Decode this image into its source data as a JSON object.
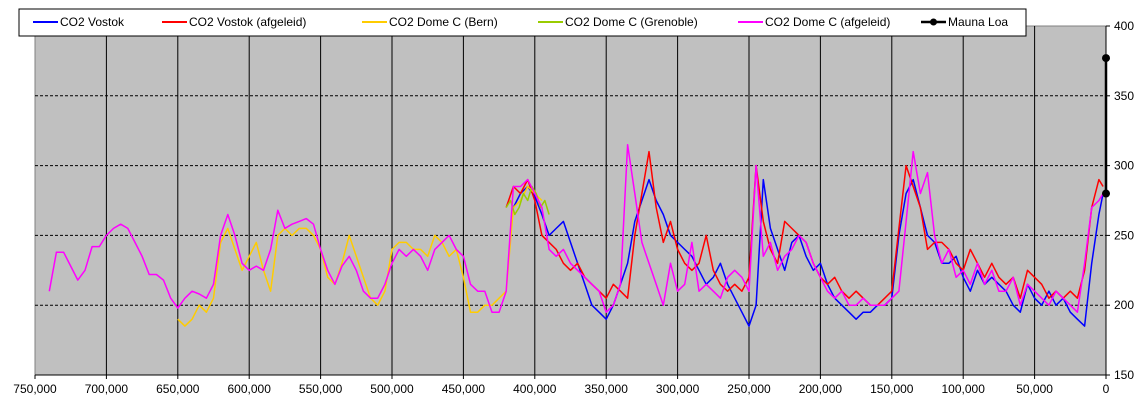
{
  "chart_data": {
    "type": "line",
    "title": "",
    "xlabel": "",
    "ylabel": "",
    "x_reversed": true,
    "xlim": [
      750000,
      0
    ],
    "ylim": [
      150,
      400
    ],
    "x_ticks": [
      750000,
      700000,
      650000,
      600000,
      550000,
      500000,
      450000,
      400000,
      350000,
      300000,
      250000,
      200000,
      150000,
      100000,
      50000,
      0
    ],
    "x_tick_labels": [
      "750,000",
      "700,000",
      "650,000",
      "600,000",
      "550,000",
      "500,000",
      "450,000",
      "400,000",
      "350,000",
      "300,000",
      "250,000",
      "200,000",
      "150,000",
      "100,000",
      "50,000",
      "0"
    ],
    "y_ticks": [
      150,
      200,
      250,
      300,
      350,
      400
    ],
    "y_tick_labels": [
      "150",
      "200",
      "250",
      "300",
      "350",
      "400"
    ],
    "y_axis_side": "right",
    "grid": "horizontal dashed",
    "plot_background": "#c0c0c0",
    "legend_position": "top",
    "series": [
      {
        "name": "CO2 Vostok",
        "color": "#0000ff",
        "x": [
          415000,
          410000,
          405000,
          400000,
          395000,
          390000,
          385000,
          380000,
          375000,
          370000,
          365000,
          360000,
          355000,
          350000,
          345000,
          340000,
          335000,
          330000,
          325000,
          320000,
          315000,
          310000,
          305000,
          300000,
          295000,
          290000,
          285000,
          280000,
          275000,
          270000,
          265000,
          260000,
          255000,
          250000,
          245000,
          240000,
          235000,
          230000,
          225000,
          220000,
          215000,
          210000,
          205000,
          200000,
          195000,
          190000,
          185000,
          180000,
          175000,
          170000,
          165000,
          160000,
          155000,
          150000,
          145000,
          140000,
          135000,
          130000,
          125000,
          120000,
          115000,
          110000,
          105000,
          100000,
          95000,
          90000,
          85000,
          80000,
          75000,
          70000,
          65000,
          60000,
          55000,
          50000,
          45000,
          40000,
          35000,
          30000,
          25000,
          20000,
          15000,
          10000,
          5000,
          2000
        ],
        "y": [
          270,
          280,
          285,
          278,
          265,
          250,
          255,
          260,
          245,
          230,
          215,
          200,
          195,
          190,
          200,
          215,
          230,
          260,
          275,
          290,
          275,
          265,
          250,
          245,
          240,
          235,
          225,
          215,
          220,
          230,
          215,
          205,
          195,
          185,
          200,
          290,
          255,
          240,
          225,
          245,
          250,
          235,
          225,
          230,
          215,
          205,
          200,
          195,
          190,
          195,
          195,
          200,
          200,
          205,
          250,
          280,
          290,
          270,
          250,
          245,
          230,
          230,
          235,
          220,
          210,
          225,
          215,
          220,
          215,
          210,
          200,
          195,
          215,
          205,
          200,
          210,
          200,
          205,
          195,
          190,
          185,
          230,
          265,
          280
        ]
      },
      {
        "name": "CO2 Vostok (afgeleid)",
        "color": "#ff0000",
        "x": [
          420000,
          415000,
          410000,
          405000,
          400000,
          395000,
          390000,
          385000,
          380000,
          375000,
          370000,
          365000,
          360000,
          355000,
          350000,
          345000,
          340000,
          335000,
          330000,
          325000,
          320000,
          315000,
          310000,
          305000,
          300000,
          295000,
          290000,
          285000,
          280000,
          275000,
          270000,
          265000,
          260000,
          255000,
          250000,
          245000,
          240000,
          235000,
          230000,
          225000,
          220000,
          215000,
          210000,
          205000,
          200000,
          195000,
          190000,
          185000,
          180000,
          175000,
          170000,
          165000,
          160000,
          155000,
          150000,
          145000,
          140000,
          135000,
          130000,
          125000,
          120000,
          115000,
          110000,
          105000,
          100000,
          95000,
          90000,
          85000,
          80000,
          75000,
          70000,
          65000,
          60000,
          55000,
          50000,
          45000,
          40000,
          35000,
          30000,
          25000,
          20000,
          15000,
          10000,
          5000,
          2000
        ],
        "y": [
          270,
          285,
          280,
          290,
          275,
          250,
          245,
          240,
          230,
          225,
          230,
          220,
          215,
          210,
          205,
          215,
          210,
          205,
          250,
          280,
          310,
          270,
          245,
          260,
          240,
          230,
          225,
          230,
          250,
          225,
          215,
          210,
          215,
          210,
          220,
          300,
          260,
          240,
          230,
          260,
          255,
          250,
          245,
          230,
          220,
          215,
          220,
          210,
          205,
          210,
          205,
          200,
          200,
          205,
          210,
          255,
          300,
          285,
          270,
          240,
          245,
          245,
          240,
          230,
          225,
          240,
          230,
          220,
          230,
          220,
          215,
          220,
          205,
          225,
          220,
          215,
          205,
          210,
          205,
          210,
          205,
          225,
          270,
          290,
          285
        ]
      },
      {
        "name": "CO2 Dome C (Bern)",
        "color": "#ffcc00",
        "x": [
          650000,
          645000,
          640000,
          635000,
          630000,
          625000,
          620000,
          615000,
          610000,
          605000,
          600000,
          595000,
          590000,
          585000,
          580000,
          575000,
          570000,
          565000,
          560000,
          555000,
          550000,
          545000,
          540000,
          535000,
          530000,
          525000,
          520000,
          515000,
          510000,
          505000,
          500000,
          495000,
          490000,
          485000,
          480000,
          475000,
          470000,
          465000,
          460000,
          455000,
          450000,
          445000,
          440000,
          435000,
          430000,
          425000,
          420000,
          415000,
          410000,
          405000,
          400000,
          395000
        ],
        "y": [
          190,
          185,
          190,
          200,
          195,
          205,
          245,
          255,
          240,
          225,
          235,
          245,
          225,
          210,
          250,
          255,
          250,
          255,
          255,
          250,
          240,
          220,
          215,
          230,
          250,
          235,
          220,
          205,
          200,
          210,
          240,
          245,
          245,
          240,
          240,
          235,
          250,
          245,
          235,
          240,
          220,
          195,
          195,
          200,
          200,
          205,
          210,
          270,
          275,
          285,
          280,
          275
        ]
      },
      {
        "name": "CO2 Dome C (Grenoble)",
        "color": "#99cc00",
        "x": [
          420000,
          417000,
          414000,
          411000,
          408000,
          405000,
          402000,
          399000,
          396000,
          393000,
          390000
        ],
        "y": [
          270,
          275,
          265,
          270,
          280,
          275,
          285,
          280,
          270,
          275,
          265
        ]
      },
      {
        "name": "CO2 Dome C (afgeleid)",
        "color": "#ff00ff",
        "x": [
          740000,
          735000,
          730000,
          725000,
          720000,
          715000,
          710000,
          705000,
          700000,
          695000,
          690000,
          685000,
          680000,
          675000,
          670000,
          665000,
          660000,
          655000,
          650000,
          645000,
          640000,
          635000,
          630000,
          625000,
          620000,
          615000,
          610000,
          605000,
          600000,
          595000,
          590000,
          585000,
          580000,
          575000,
          570000,
          565000,
          560000,
          555000,
          550000,
          545000,
          540000,
          535000,
          530000,
          525000,
          520000,
          515000,
          510000,
          505000,
          500000,
          495000,
          490000,
          485000,
          480000,
          475000,
          470000,
          465000,
          460000,
          455000,
          450000,
          445000,
          440000,
          435000,
          430000,
          425000,
          420000,
          415000,
          410000,
          405000,
          400000,
          395000,
          390000,
          385000,
          380000,
          375000,
          370000,
          365000,
          360000,
          355000,
          350000,
          345000,
          340000,
          335000,
          330000,
          325000,
          320000,
          315000,
          310000,
          305000,
          300000,
          295000,
          290000,
          285000,
          280000,
          275000,
          270000,
          265000,
          260000,
          255000,
          250000,
          245000,
          240000,
          235000,
          230000,
          225000,
          220000,
          215000,
          210000,
          205000,
          200000,
          195000,
          190000,
          185000,
          180000,
          175000,
          170000,
          165000,
          160000,
          155000,
          150000,
          145000,
          140000,
          135000,
          130000,
          125000,
          120000,
          115000,
          110000,
          105000,
          100000,
          95000,
          90000,
          85000,
          80000,
          75000,
          70000,
          65000,
          60000,
          55000,
          50000,
          45000,
          40000,
          35000,
          30000,
          25000,
          20000,
          15000,
          10000,
          5000,
          2000
        ],
        "y": [
          210,
          238,
          238,
          228,
          218,
          225,
          242,
          242,
          250,
          255,
          258,
          255,
          245,
          235,
          222,
          222,
          218,
          205,
          198,
          205,
          210,
          208,
          205,
          215,
          250,
          265,
          250,
          230,
          225,
          228,
          225,
          240,
          268,
          255,
          258,
          260,
          262,
          258,
          240,
          225,
          215,
          228,
          235,
          225,
          210,
          205,
          205,
          215,
          230,
          240,
          235,
          240,
          235,
          225,
          240,
          245,
          250,
          240,
          235,
          215,
          210,
          210,
          195,
          195,
          210,
          285,
          285,
          290,
          280,
          270,
          240,
          235,
          240,
          230,
          225,
          220,
          215,
          210,
          195,
          200,
          215,
          315,
          280,
          245,
          230,
          215,
          200,
          230,
          210,
          215,
          245,
          210,
          215,
          210,
          205,
          220,
          225,
          220,
          210,
          300,
          235,
          245,
          225,
          235,
          240,
          250,
          245,
          230,
          220,
          210,
          205,
          210,
          200,
          200,
          205,
          200,
          200,
          200,
          205,
          210,
          260,
          310,
          280,
          295,
          250,
          230,
          240,
          220,
          225,
          215,
          230,
          215,
          225,
          210,
          210,
          220,
          200,
          215,
          210,
          205,
          200,
          210,
          205,
          200,
          195,
          230,
          270,
          275,
          280
        ]
      },
      {
        "name": "Mauna Loa",
        "color": "#000000",
        "marker": "diamond",
        "x": [
          0,
          0
        ],
        "y": [
          280,
          377
        ]
      }
    ]
  }
}
